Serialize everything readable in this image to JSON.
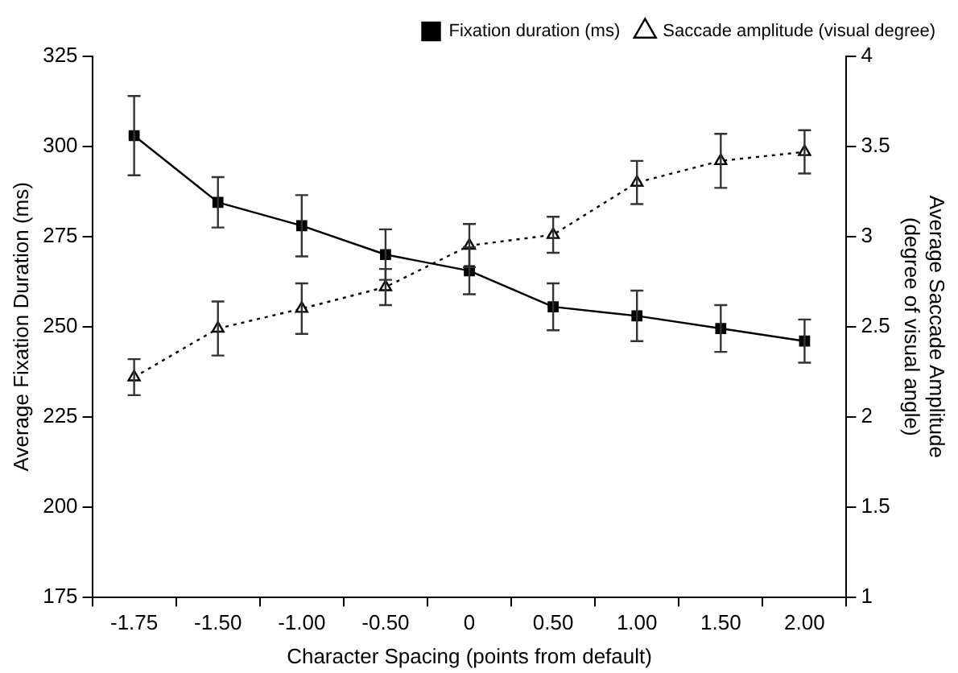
{
  "chart_data": {
    "type": "line",
    "xlabel": "Character Spacing (points from default)",
    "ylabel": "Average Fixation Duration (ms)",
    "y2label": "Average Saccade Amplitude\n(degree of visual angle)",
    "categories": [
      "-1.75",
      "-1.50",
      "-1.00",
      "-0.50",
      "0",
      "0.50",
      "1.00",
      "1.50",
      "2.00"
    ],
    "series": [
      {
        "name": "Fixation duration (ms)",
        "color": "#000000",
        "marker": "square",
        "line_style": "solid",
        "values": [
          303,
          284.5,
          278,
          270,
          265.5,
          255.5,
          253,
          249.5,
          246
        ],
        "errors": [
          11,
          7,
          8.5,
          7,
          6.5,
          6.5,
          7,
          6.5,
          6
        ]
      },
      {
        "name": "Saccade amplitude (visual degree)",
        "color": "#000000",
        "marker": "triangle",
        "line_style": "dotted",
        "axis": "y2",
        "values": [
          2.22,
          2.49,
          2.6,
          2.72,
          2.95,
          3.01,
          3.3,
          3.42,
          3.47
        ],
        "errors": [
          0.1,
          0.15,
          0.14,
          0.1,
          0.12,
          0.1,
          0.12,
          0.15,
          0.12
        ]
      }
    ],
    "ylim": [
      175,
      325
    ],
    "yticks": [
      175,
      200,
      225,
      250,
      275,
      300,
      325
    ],
    "y2lim": [
      1,
      4
    ],
    "y2ticks": [
      1,
      1.5,
      2,
      2.5,
      3,
      3.5,
      4
    ],
    "grid": false,
    "legend": "top right"
  }
}
